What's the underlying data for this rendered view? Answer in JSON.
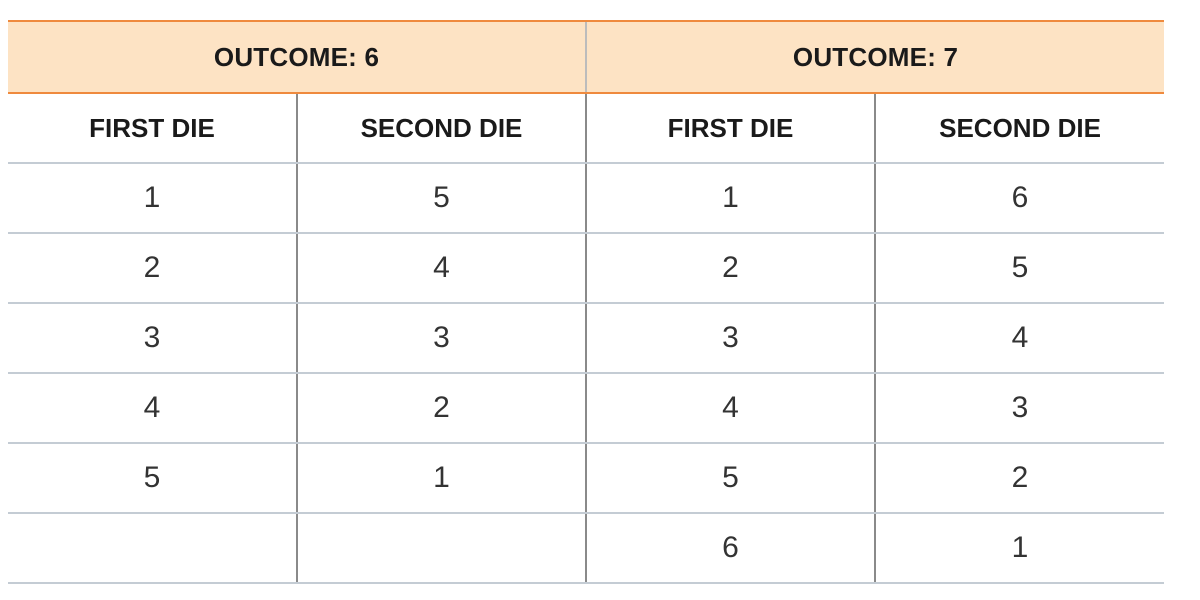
{
  "table": {
    "groups": [
      "OUTCOME: 6",
      "OUTCOME: 7"
    ],
    "columns": [
      "FIRST DIE",
      "SECOND DIE",
      "FIRST DIE",
      "SECOND DIE"
    ],
    "rows": [
      [
        "1",
        "5",
        "1",
        "6"
      ],
      [
        "2",
        "4",
        "2",
        "5"
      ],
      [
        "3",
        "3",
        "3",
        "4"
      ],
      [
        "4",
        "2",
        "4",
        "3"
      ],
      [
        "5",
        "1",
        "5",
        "2"
      ],
      [
        "",
        "",
        "6",
        "1"
      ]
    ]
  }
}
